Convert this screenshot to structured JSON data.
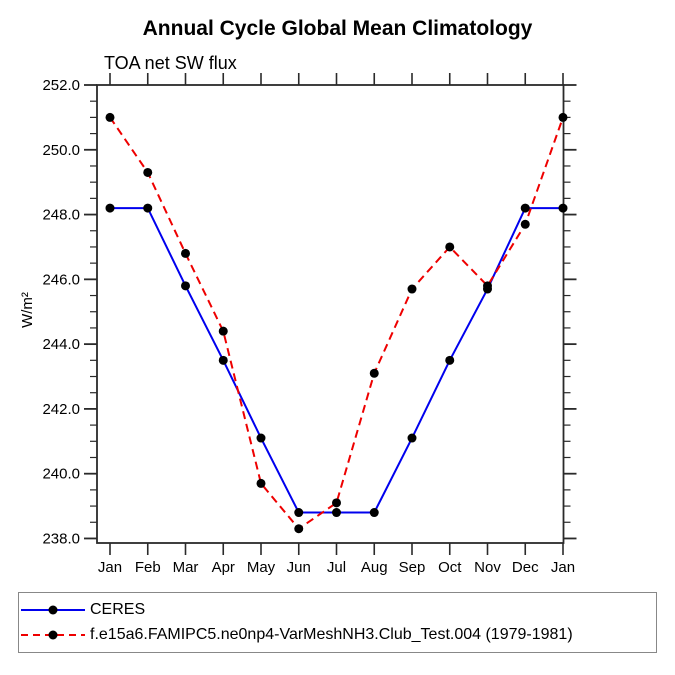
{
  "title": "Annual Cycle Global Mean Climatology",
  "subtitle": "TOA net SW flux",
  "ylabel": "W/m²",
  "colors": {
    "ceres_line": "#0000ee",
    "model_line": "#ee0000",
    "marker": "#000000",
    "axis": "#2a2a2a"
  },
  "chart_data": {
    "type": "line",
    "title": "Annual Cycle Global Mean Climatology",
    "subtitle": "TOA net SW flux",
    "ylabel": "W/m²",
    "categories": [
      "Jan",
      "Feb",
      "Mar",
      "Apr",
      "May",
      "Jun",
      "Jul",
      "Aug",
      "Sep",
      "Oct",
      "Nov",
      "Dec",
      "Jan"
    ],
    "series": [
      {
        "name": "CERES",
        "color": "#0000ee",
        "style": "solid",
        "marker": "circle",
        "marker_color": "#000000",
        "values": [
          248.2,
          248.2,
          245.8,
          243.5,
          241.1,
          238.8,
          238.8,
          238.8,
          241.1,
          243.5,
          245.7,
          248.2,
          248.2
        ]
      },
      {
        "name": "f.e15a6.FAMIPC5.ne0np4-VarMeshNH3.Club_Test.004 (1979-1981)",
        "color": "#ee0000",
        "style": "dashed",
        "marker": "circle",
        "marker_color": "#000000",
        "values": [
          251.0,
          249.3,
          246.8,
          244.4,
          239.7,
          238.3,
          239.1,
          243.1,
          245.7,
          247.0,
          245.8,
          247.7,
          251.0
        ]
      }
    ],
    "ylim": [
      237.86,
      252.0
    ],
    "yticks": [
      238.0,
      240.0,
      242.0,
      244.0,
      246.0,
      248.0,
      250.0,
      252.0
    ],
    "ytick_labels": [
      "238.0",
      "240.0",
      "242.0",
      "244.0",
      "246.0",
      "248.0",
      "250.0",
      "252.0"
    ],
    "minor_tick_interval": 0.5,
    "grid": false,
    "legend_position": "bottom"
  }
}
